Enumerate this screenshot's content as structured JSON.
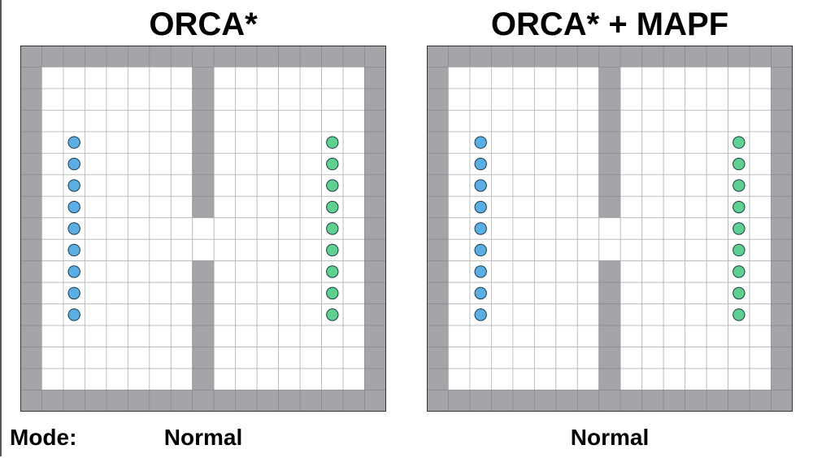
{
  "panels": [
    {
      "title": "ORCA*",
      "mode": "Normal",
      "grid": {
        "cols": 17,
        "rows": 17,
        "walls": "perimeter + center wall with door",
        "door_rows": [
          8,
          9
        ]
      },
      "agents": {
        "left_group": {
          "color": "#5aaee4",
          "col": 2,
          "rows_from": 4,
          "count": 9
        },
        "right_group": {
          "color": "#5fd08f",
          "col": 14,
          "rows_from": 4,
          "count": 9
        }
      }
    },
    {
      "title": "ORCA* + MAPF",
      "mode": "Normal",
      "grid": {
        "cols": 17,
        "rows": 17,
        "walls": "perimeter + center wall with door",
        "door_rows": [
          8,
          9
        ]
      },
      "agents": {
        "left_group": {
          "color": "#5aaee4",
          "col": 2,
          "rows_from": 4,
          "count": 9
        },
        "right_group": {
          "color": "#5fd08f",
          "col": 14,
          "rows_from": 4,
          "count": 9
        }
      }
    }
  ],
  "mode_label": "Mode:",
  "colors": {
    "wall": "#a5a4a9",
    "wall_line": "#8d8c91",
    "floor": "#ffffff",
    "grid_line": "#b5b5b5",
    "border": "#333333"
  }
}
